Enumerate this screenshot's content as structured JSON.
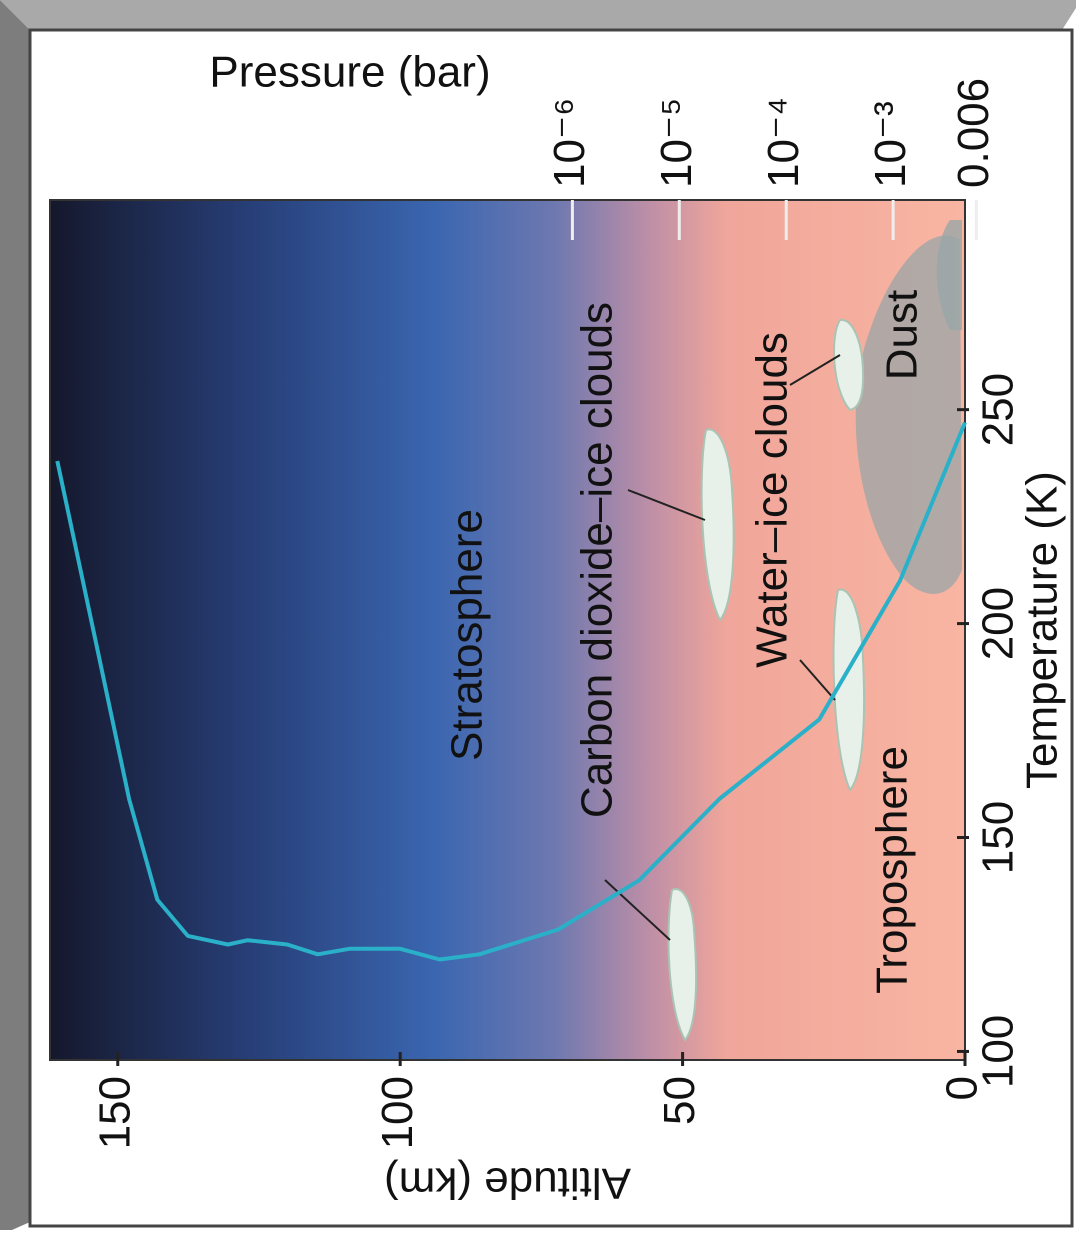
{
  "chart_data": {
    "type": "line",
    "xlabel": "Temperature (K)",
    "ylabel": "Altitude (km)",
    "y2label": "Pressure (bar)",
    "x": [
      247,
      210,
      177.6,
      159,
      140,
      128.5,
      122.7,
      121.5,
      124,
      124,
      122.7,
      125,
      126,
      125,
      127,
      135.5,
      159,
      194,
      238
    ],
    "series": [
      {
        "color": "#2ab0c8",
        "values": [
          0,
          11.5,
          25.8,
          43.5,
          57.7,
          72,
          86,
          93,
          100,
          109,
          114.6,
          120,
          127,
          130.5,
          137.6,
          143,
          148,
          153.6,
          160.7
        ]
      }
    ],
    "xlim": [
      98,
      299
    ],
    "xticks": [
      100,
      150,
      200,
      250
    ],
    "ylim": [
      0,
      162
    ],
    "yticks": [
      0,
      50,
      100,
      150
    ],
    "y2lim": [
      0.0047,
      1.3e-11
    ],
    "y2scale": "log",
    "y2ticks": [
      {
        "value": 1e-06,
        "label": "10⁻⁶"
      },
      {
        "value": 1e-05,
        "label": "10⁻⁵"
      },
      {
        "value": 0.0001,
        "label": "10⁻⁴"
      },
      {
        "value": 0.001,
        "label": "10⁻³"
      },
      0.006
    ],
    "annotations": [
      "Stratosphere",
      "Troposphere",
      "Carbon dioxide–ice clouds",
      "Water–ice clouds",
      "Dust"
    ]
  }
}
